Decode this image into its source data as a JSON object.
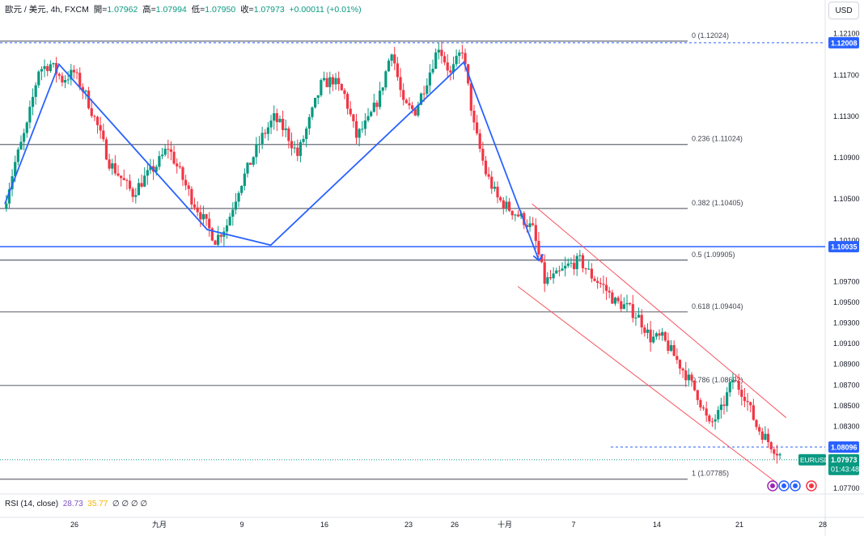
{
  "header": {
    "symbol": "歐元 / 美元, 4h, FXCM",
    "open_label": "開=",
    "open": "1.07962",
    "high_label": "高=",
    "high": "1.07994",
    "low_label": "低=",
    "low": "1.07950",
    "close_label": "收=",
    "close": "1.07973",
    "change": "+0.00011 (+0.01%)"
  },
  "currency_button": "USD",
  "rsi": {
    "label": "RSI (14, close)",
    "value1": "28.73",
    "value2": "35.77",
    "extra": "∅ ∅ ∅ ∅"
  },
  "colors": {
    "up": "#089981",
    "down": "#f23645",
    "blue": "#2962ff",
    "fib": "#787b86",
    "channel": "#f7525f"
  },
  "chart_data": {
    "type": "candlestick",
    "symbol": "EURUSD",
    "timeframe": "4h",
    "ylim": [
      1.0765,
      1.1225
    ],
    "y_ticks": [
      1.121,
      1.117,
      1.113,
      1.109,
      1.105,
      1.101,
      1.097,
      1.095,
      1.093,
      1.091,
      1.089,
      1.087,
      1.085,
      1.083,
      1.077
    ],
    "x_ticks": [
      {
        "label": "26",
        "i": 0
      },
      {
        "label": "九月",
        "i": 1
      },
      {
        "label": "9",
        "i": 2
      },
      {
        "label": "16",
        "i": 3
      },
      {
        "label": "23",
        "i": 4
      },
      {
        "label": "26",
        "i": 5
      },
      {
        "label": "十月",
        "i": 6
      },
      {
        "label": "7",
        "i": 7
      },
      {
        "label": "14",
        "i": 8
      },
      {
        "label": "21",
        "i": 9
      },
      {
        "label": "28",
        "i": 10
      }
    ],
    "fib_levels": [
      {
        "label": "0 (1.12024)",
        "value": 1.12024
      },
      {
        "label": "0.236 (1.11024)",
        "value": 1.11024
      },
      {
        "label": "0.382 (1.10405)",
        "value": 1.10405
      },
      {
        "label": "0.5 (1.09905)",
        "value": 1.09905
      },
      {
        "label": "0.618 (1.09404)",
        "value": 1.09404
      },
      {
        "label": "0.786 (1.08692)",
        "value": 1.08692
      },
      {
        "label": "1 (1.07785)",
        "value": 1.07785
      }
    ],
    "price_tags": [
      {
        "label": "1.12008",
        "value": 1.12008,
        "color": "#2962ff"
      },
      {
        "label": "1.10035",
        "value": 1.10035,
        "color": "#2962ff"
      },
      {
        "label": "1.08096",
        "value": 1.08096,
        "color": "#2962ff"
      }
    ],
    "last_price": {
      "symbol": "EURUSD",
      "price": "1.07973",
      "countdown": "01:43:48",
      "value": 1.07973,
      "color": "#089981"
    },
    "zigzag": [
      [
        26.0,
        1.1045
      ],
      [
        28.3,
        1.118
      ],
      [
        34.6,
        1.102
      ],
      [
        37.3,
        1.1005
      ],
      [
        45.5,
        1.1182
      ],
      [
        48.7,
        1.099
      ]
    ],
    "close_path": [
      [
        26.0,
        1.104
      ],
      [
        26.5,
        1.1085
      ],
      [
        27.0,
        1.112
      ],
      [
        27.5,
        1.1175
      ],
      [
        28.0,
        1.118
      ],
      [
        28.5,
        1.1165
      ],
      [
        29.0,
        1.1172
      ],
      [
        29.5,
        1.115
      ],
      [
        30.0,
        1.112
      ],
      [
        30.5,
        1.1085
      ],
      [
        31.0,
        1.107
      ],
      [
        31.5,
        1.1055
      ],
      [
        32.0,
        1.107
      ],
      [
        32.5,
        1.1082
      ],
      [
        33.0,
        1.11
      ],
      [
        33.5,
        1.1075
      ],
      [
        34.0,
        1.105
      ],
      [
        34.5,
        1.103
      ],
      [
        35.0,
        1.101
      ],
      [
        35.5,
        1.1025
      ],
      [
        36.0,
        1.106
      ],
      [
        36.5,
        1.1085
      ],
      [
        37.0,
        1.111
      ],
      [
        37.5,
        1.1128
      ],
      [
        38.0,
        1.1115
      ],
      [
        38.5,
        1.1092
      ],
      [
        39.0,
        1.1125
      ],
      [
        39.5,
        1.116
      ],
      [
        40.0,
        1.1165
      ],
      [
        40.5,
        1.115
      ],
      [
        41.0,
        1.111
      ],
      [
        41.5,
        1.1125
      ],
      [
        42.0,
        1.115
      ],
      [
        42.5,
        1.1195
      ],
      [
        43.0,
        1.114
      ],
      [
        43.5,
        1.1135
      ],
      [
        44.0,
        1.1165
      ],
      [
        44.5,
        1.1198
      ],
      [
        45.0,
        1.117
      ],
      [
        45.5,
        1.1195
      ],
      [
        46.0,
        1.112
      ],
      [
        46.5,
        1.1075
      ],
      [
        47.0,
        1.105
      ],
      [
        47.5,
        1.104
      ],
      [
        48.0,
        1.1032
      ],
      [
        48.5,
        1.102
      ],
      [
        49.0,
        1.097
      ],
      [
        49.5,
        1.0975
      ],
      [
        50.0,
        1.0985
      ],
      [
        50.5,
        1.099
      ],
      [
        51.0,
        1.0975
      ],
      [
        51.5,
        1.0965
      ],
      [
        52.0,
        1.095
      ],
      [
        52.5,
        1.0945
      ],
      [
        53.0,
        1.0935
      ],
      [
        53.5,
        1.0915
      ],
      [
        54.0,
        1.0915
      ],
      [
        54.5,
        1.0898
      ],
      [
        55.0,
        1.088
      ],
      [
        55.5,
        1.086
      ],
      [
        56.0,
        1.083
      ],
      [
        56.5,
        1.0845
      ],
      [
        57.0,
        1.0875
      ],
      [
        57.5,
        1.086
      ],
      [
        58.0,
        1.083
      ],
      [
        58.5,
        1.0815
      ],
      [
        59.0,
        1.0802
      ]
    ],
    "channel": {
      "upper": [
        [
          48.4,
          1.1045
        ],
        [
          59.2,
          1.0838
        ]
      ],
      "lower": [
        [
          47.8,
          1.0965
        ],
        [
          58.8,
          1.0775
        ]
      ]
    }
  }
}
